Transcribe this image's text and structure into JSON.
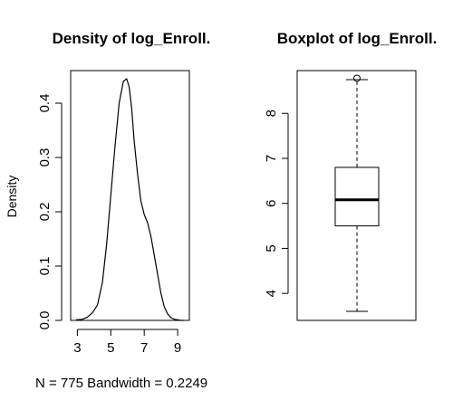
{
  "chart_data": [
    {
      "type": "line",
      "title": "Density of log_Enroll.",
      "xlabel": "",
      "ylabel": "Density",
      "sub": "N = 775   Bandwidth = 0.2249",
      "xlim": [
        2.6,
        9.7
      ],
      "ylim": [
        0,
        0.46
      ],
      "xticks": [
        3,
        5,
        7,
        9
      ],
      "yticks": [
        0.0,
        0.1,
        0.2,
        0.3,
        0.4
      ],
      "xtick_labels": [
        "3",
        "5",
        "7",
        "9"
      ],
      "ytick_labels": [
        "0.0",
        "0.1",
        "0.2",
        "0.3",
        "0.4"
      ],
      "series": [
        {
          "x": [
            2.93,
            3.3,
            3.6,
            3.9,
            4.2,
            4.5,
            4.75,
            5.0,
            5.25,
            5.5,
            5.75,
            5.95,
            6.1,
            6.25,
            6.4,
            6.6,
            6.8,
            7.0,
            7.2,
            7.4,
            7.6,
            7.8,
            8.0,
            8.2,
            8.4,
            8.6,
            8.8,
            9.0,
            9.2,
            9.36
          ],
          "y": [
            0.001,
            0.002,
            0.006,
            0.014,
            0.028,
            0.07,
            0.14,
            0.23,
            0.32,
            0.4,
            0.44,
            0.445,
            0.43,
            0.39,
            0.33,
            0.27,
            0.22,
            0.195,
            0.18,
            0.155,
            0.12,
            0.085,
            0.05,
            0.025,
            0.012,
            0.005,
            0.002,
            0.001,
            0.0,
            0.0
          ]
        }
      ]
    },
    {
      "type": "boxplot",
      "title": "Boxplot of log_Enroll.",
      "xlabel": "",
      "ylabel": "",
      "ylim": [
        3.4,
        8.95
      ],
      "yticks": [
        4,
        5,
        6,
        7,
        8
      ],
      "ytick_labels": [
        "4",
        "5",
        "6",
        "7",
        "8"
      ],
      "box": {
        "whisker_low": 3.6,
        "q1": 5.5,
        "median": 6.08,
        "q3": 6.8,
        "whisker_high": 8.75,
        "outliers": [
          8.78
        ]
      }
    }
  ]
}
